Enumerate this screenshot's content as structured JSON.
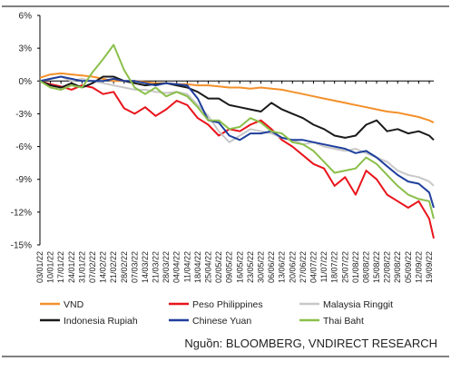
{
  "chart_data": {
    "type": "line",
    "title": "",
    "xlabel": "",
    "ylabel": "",
    "ylim": [
      -15,
      6
    ],
    "y_ticks": [
      "6%",
      "3%",
      "0%",
      "-3%",
      "-6%",
      "-9%",
      "-12%",
      "-15%"
    ],
    "y_tick_values": [
      6,
      3,
      0,
      -3,
      -6,
      -9,
      -12,
      -15
    ],
    "x_tick_labels": [
      "03/01/22",
      "10/01/22",
      "17/01/22",
      "24/01/22",
      "31/01/22",
      "07/02/22",
      "14/02/22",
      "21/02/22",
      "28/02/22",
      "07/03/22",
      "14/03/22",
      "21/03/22",
      "28/03/22",
      "04/04/22",
      "11/04/22",
      "18/04/22",
      "25/04/22",
      "02/05/22",
      "09/05/22",
      "16/05/22",
      "23/05/22",
      "30/05/22",
      "06/06/22",
      "13/06/22",
      "20/06/22",
      "27/06/22",
      "04/07/22",
      "11/07/22",
      "18/07/22",
      "25/07/22",
      "01/08/22",
      "08/08/22",
      "15/08/22",
      "22/08/22",
      "29/08/22",
      "05/09/22",
      "12/09/22",
      "19/09/22"
    ],
    "x_range": [
      "03/01/22",
      "22/09/22"
    ],
    "grid": false,
    "legend_position": "bottom",
    "series": [
      {
        "name": "VND",
        "color": "#f4902a",
        "points": [
          [
            "03/01/22",
            0.3
          ],
          [
            "10/01/22",
            0.6
          ],
          [
            "17/01/22",
            0.7
          ],
          [
            "24/01/22",
            0.6
          ],
          [
            "31/01/22",
            0.5
          ],
          [
            "07/02/22",
            0.4
          ],
          [
            "14/02/22",
            0.2
          ],
          [
            "21/02/22",
            0.0
          ],
          [
            "28/02/22",
            0.0
          ],
          [
            "07/03/22",
            0.0
          ],
          [
            "14/03/22",
            -0.1
          ],
          [
            "21/03/22",
            -0.2
          ],
          [
            "28/03/22",
            -0.2
          ],
          [
            "04/04/22",
            -0.3
          ],
          [
            "11/04/22",
            -0.3
          ],
          [
            "18/04/22",
            -0.4
          ],
          [
            "25/04/22",
            -0.4
          ],
          [
            "02/05/22",
            -0.5
          ],
          [
            "09/05/22",
            -0.6
          ],
          [
            "16/05/22",
            -0.6
          ],
          [
            "23/05/22",
            -0.7
          ],
          [
            "30/05/22",
            -0.6
          ],
          [
            "06/06/22",
            -0.7
          ],
          [
            "13/06/22",
            -0.8
          ],
          [
            "20/06/22",
            -1.0
          ],
          [
            "27/06/22",
            -1.2
          ],
          [
            "04/07/22",
            -1.4
          ],
          [
            "11/07/22",
            -1.6
          ],
          [
            "18/07/22",
            -1.8
          ],
          [
            "25/07/22",
            -2.0
          ],
          [
            "01/08/22",
            -2.2
          ],
          [
            "08/08/22",
            -2.4
          ],
          [
            "15/08/22",
            -2.6
          ],
          [
            "22/08/22",
            -2.8
          ],
          [
            "29/08/22",
            -2.9
          ],
          [
            "05/09/22",
            -3.1
          ],
          [
            "12/09/22",
            -3.3
          ],
          [
            "19/09/22",
            -3.6
          ],
          [
            "22/09/22",
            -3.8
          ]
        ]
      },
      {
        "name": "Peso Philippines",
        "color": "#e8141b",
        "points": [
          [
            "03/01/22",
            0.0
          ],
          [
            "10/01/22",
            -0.3
          ],
          [
            "17/01/22",
            -0.5
          ],
          [
            "24/01/22",
            -0.8
          ],
          [
            "31/01/22",
            -0.4
          ],
          [
            "07/02/22",
            -0.6
          ],
          [
            "14/02/22",
            -1.2
          ],
          [
            "21/02/22",
            -1.0
          ],
          [
            "28/02/22",
            -2.5
          ],
          [
            "07/03/22",
            -3.0
          ],
          [
            "14/03/22",
            -2.4
          ],
          [
            "21/03/22",
            -3.2
          ],
          [
            "28/03/22",
            -2.6
          ],
          [
            "04/04/22",
            -1.8
          ],
          [
            "11/04/22",
            -2.2
          ],
          [
            "18/04/22",
            -3.4
          ],
          [
            "25/04/22",
            -4.0
          ],
          [
            "02/05/22",
            -5.0
          ],
          [
            "09/05/22",
            -4.4
          ],
          [
            "16/05/22",
            -4.6
          ],
          [
            "23/05/22",
            -4.0
          ],
          [
            "30/05/22",
            -3.6
          ],
          [
            "06/06/22",
            -4.4
          ],
          [
            "13/06/22",
            -5.4
          ],
          [
            "20/06/22",
            -6.0
          ],
          [
            "27/06/22",
            -6.8
          ],
          [
            "04/07/22",
            -7.6
          ],
          [
            "11/07/22",
            -8.0
          ],
          [
            "18/07/22",
            -9.6
          ],
          [
            "25/07/22",
            -8.8
          ],
          [
            "01/08/22",
            -10.4
          ],
          [
            "08/08/22",
            -8.2
          ],
          [
            "15/08/22",
            -9.0
          ],
          [
            "22/08/22",
            -10.4
          ],
          [
            "29/08/22",
            -11.0
          ],
          [
            "05/09/22",
            -11.6
          ],
          [
            "12/09/22",
            -11.0
          ],
          [
            "19/09/22",
            -12.6
          ],
          [
            "22/09/22",
            -14.4
          ]
        ]
      },
      {
        "name": "Malaysia Ringgit",
        "color": "#c8c8c8",
        "points": [
          [
            "03/01/22",
            0.0
          ],
          [
            "10/01/22",
            0.2
          ],
          [
            "17/01/22",
            0.4
          ],
          [
            "24/01/22",
            0.0
          ],
          [
            "31/01/22",
            0.2
          ],
          [
            "07/02/22",
            0.0
          ],
          [
            "14/02/22",
            -0.2
          ],
          [
            "21/02/22",
            -0.4
          ],
          [
            "28/02/22",
            -0.6
          ],
          [
            "07/03/22",
            -0.8
          ],
          [
            "14/03/22",
            -0.8
          ],
          [
            "21/03/22",
            -1.0
          ],
          [
            "28/03/22",
            -1.1
          ],
          [
            "04/04/22",
            -1.0
          ],
          [
            "11/04/22",
            -1.2
          ],
          [
            "18/04/22",
            -2.2
          ],
          [
            "25/04/22",
            -3.2
          ],
          [
            "02/05/22",
            -4.6
          ],
          [
            "09/05/22",
            -5.6
          ],
          [
            "16/05/22",
            -5.0
          ],
          [
            "23/05/22",
            -4.4
          ],
          [
            "30/05/22",
            -4.6
          ],
          [
            "06/06/22",
            -4.8
          ],
          [
            "13/06/22",
            -5.2
          ],
          [
            "20/06/22",
            -5.4
          ],
          [
            "27/06/22",
            -5.8
          ],
          [
            "04/07/22",
            -5.6
          ],
          [
            "11/07/22",
            -6.0
          ],
          [
            "18/07/22",
            -6.2
          ],
          [
            "25/07/22",
            -6.4
          ],
          [
            "01/08/22",
            -6.2
          ],
          [
            "08/08/22",
            -6.6
          ],
          [
            "15/08/22",
            -7.0
          ],
          [
            "22/08/22",
            -7.4
          ],
          [
            "29/08/22",
            -8.2
          ],
          [
            "05/09/22",
            -8.6
          ],
          [
            "12/09/22",
            -8.8
          ],
          [
            "19/09/22",
            -9.2
          ],
          [
            "22/09/22",
            -9.6
          ]
        ]
      },
      {
        "name": "Indonesia Rupiah",
        "color": "#1a1a1a",
        "points": [
          [
            "03/01/22",
            0.0
          ],
          [
            "10/01/22",
            -0.4
          ],
          [
            "17/01/22",
            -0.6
          ],
          [
            "24/01/22",
            -0.2
          ],
          [
            "31/01/22",
            -0.6
          ],
          [
            "07/02/22",
            -0.2
          ],
          [
            "14/02/22",
            0.4
          ],
          [
            "21/02/22",
            0.4
          ],
          [
            "28/02/22",
            0.0
          ],
          [
            "07/03/22",
            -0.2
          ],
          [
            "14/03/22",
            -0.4
          ],
          [
            "21/03/22",
            -0.3
          ],
          [
            "28/03/22",
            -0.2
          ],
          [
            "04/04/22",
            -0.4
          ],
          [
            "11/04/22",
            -0.6
          ],
          [
            "18/04/22",
            -1.0
          ],
          [
            "25/04/22",
            -1.6
          ],
          [
            "02/05/22",
            -1.6
          ],
          [
            "09/05/22",
            -2.2
          ],
          [
            "16/05/22",
            -2.4
          ],
          [
            "23/05/22",
            -2.6
          ],
          [
            "30/05/22",
            -2.8
          ],
          [
            "06/06/22",
            -2.0
          ],
          [
            "13/06/22",
            -2.6
          ],
          [
            "20/06/22",
            -3.0
          ],
          [
            "27/06/22",
            -3.4
          ],
          [
            "04/07/22",
            -4.0
          ],
          [
            "11/07/22",
            -4.4
          ],
          [
            "18/07/22",
            -5.0
          ],
          [
            "25/07/22",
            -5.2
          ],
          [
            "01/08/22",
            -5.0
          ],
          [
            "08/08/22",
            -4.0
          ],
          [
            "15/08/22",
            -3.6
          ],
          [
            "22/08/22",
            -4.6
          ],
          [
            "29/08/22",
            -4.4
          ],
          [
            "05/09/22",
            -4.8
          ],
          [
            "12/09/22",
            -4.6
          ],
          [
            "19/09/22",
            -5.0
          ],
          [
            "22/09/22",
            -5.4
          ]
        ]
      },
      {
        "name": "Chinese Yuan",
        "color": "#1f3f9c",
        "points": [
          [
            "03/01/22",
            0.0
          ],
          [
            "10/01/22",
            0.2
          ],
          [
            "17/01/22",
            0.4
          ],
          [
            "24/01/22",
            0.2
          ],
          [
            "31/01/22",
            0.0
          ],
          [
            "07/02/22",
            0.0
          ],
          [
            "14/02/22",
            0.0
          ],
          [
            "21/02/22",
            0.2
          ],
          [
            "28/02/22",
            0.0
          ],
          [
            "07/03/22",
            0.0
          ],
          [
            "14/03/22",
            -0.2
          ],
          [
            "21/03/22",
            -0.4
          ],
          [
            "28/03/22",
            -0.2
          ],
          [
            "04/04/22",
            -0.3
          ],
          [
            "11/04/22",
            -0.4
          ],
          [
            "18/04/22",
            -1.6
          ],
          [
            "25/04/22",
            -3.6
          ],
          [
            "02/05/22",
            -3.8
          ],
          [
            "09/05/22",
            -5.0
          ],
          [
            "16/05/22",
            -5.4
          ],
          [
            "23/05/22",
            -4.8
          ],
          [
            "30/05/22",
            -4.8
          ],
          [
            "06/06/22",
            -4.6
          ],
          [
            "13/06/22",
            -5.2
          ],
          [
            "20/06/22",
            -5.4
          ],
          [
            "27/06/22",
            -5.4
          ],
          [
            "04/07/22",
            -5.6
          ],
          [
            "11/07/22",
            -5.8
          ],
          [
            "18/07/22",
            -6.0
          ],
          [
            "25/07/22",
            -6.2
          ],
          [
            "01/08/22",
            -6.6
          ],
          [
            "08/08/22",
            -6.4
          ],
          [
            "15/08/22",
            -7.0
          ],
          [
            "22/08/22",
            -7.8
          ],
          [
            "29/08/22",
            -8.6
          ],
          [
            "05/09/22",
            -9.2
          ],
          [
            "12/09/22",
            -9.4
          ],
          [
            "19/09/22",
            -10.2
          ],
          [
            "22/09/22",
            -11.6
          ]
        ]
      },
      {
        "name": "Thai Baht",
        "color": "#8bbf4a",
        "points": [
          [
            "03/01/22",
            0.0
          ],
          [
            "10/01/22",
            -0.6
          ],
          [
            "17/01/22",
            -0.8
          ],
          [
            "24/01/22",
            -0.4
          ],
          [
            "31/01/22",
            -0.6
          ],
          [
            "07/02/22",
            0.8
          ],
          [
            "14/02/22",
            2.0
          ],
          [
            "21/02/22",
            3.3
          ],
          [
            "28/02/22",
            1.0
          ],
          [
            "07/03/22",
            -0.6
          ],
          [
            "14/03/22",
            -1.2
          ],
          [
            "21/03/22",
            -0.6
          ],
          [
            "28/03/22",
            -1.4
          ],
          [
            "04/04/22",
            -1.0
          ],
          [
            "11/04/22",
            -1.4
          ],
          [
            "18/04/22",
            -2.4
          ],
          [
            "25/04/22",
            -3.6
          ],
          [
            "02/05/22",
            -3.6
          ],
          [
            "09/05/22",
            -4.4
          ],
          [
            "16/05/22",
            -4.2
          ],
          [
            "23/05/22",
            -3.4
          ],
          [
            "30/05/22",
            -3.8
          ],
          [
            "06/06/22",
            -4.6
          ],
          [
            "13/06/22",
            -4.8
          ],
          [
            "20/06/22",
            -5.6
          ],
          [
            "27/06/22",
            -5.8
          ],
          [
            "04/07/22",
            -6.4
          ],
          [
            "11/07/22",
            -7.4
          ],
          [
            "18/07/22",
            -8.4
          ],
          [
            "25/07/22",
            -8.2
          ],
          [
            "01/08/22",
            -8.0
          ],
          [
            "08/08/22",
            -7.0
          ],
          [
            "15/08/22",
            -7.6
          ],
          [
            "22/08/22",
            -8.6
          ],
          [
            "29/08/22",
            -9.6
          ],
          [
            "05/09/22",
            -10.4
          ],
          [
            "12/09/22",
            -10.8
          ],
          [
            "19/09/22",
            -11.0
          ],
          [
            "22/09/22",
            -12.6
          ]
        ]
      }
    ]
  },
  "source": "Nguồn: BLOOMBERG, VNDIRECT RESEARCH"
}
